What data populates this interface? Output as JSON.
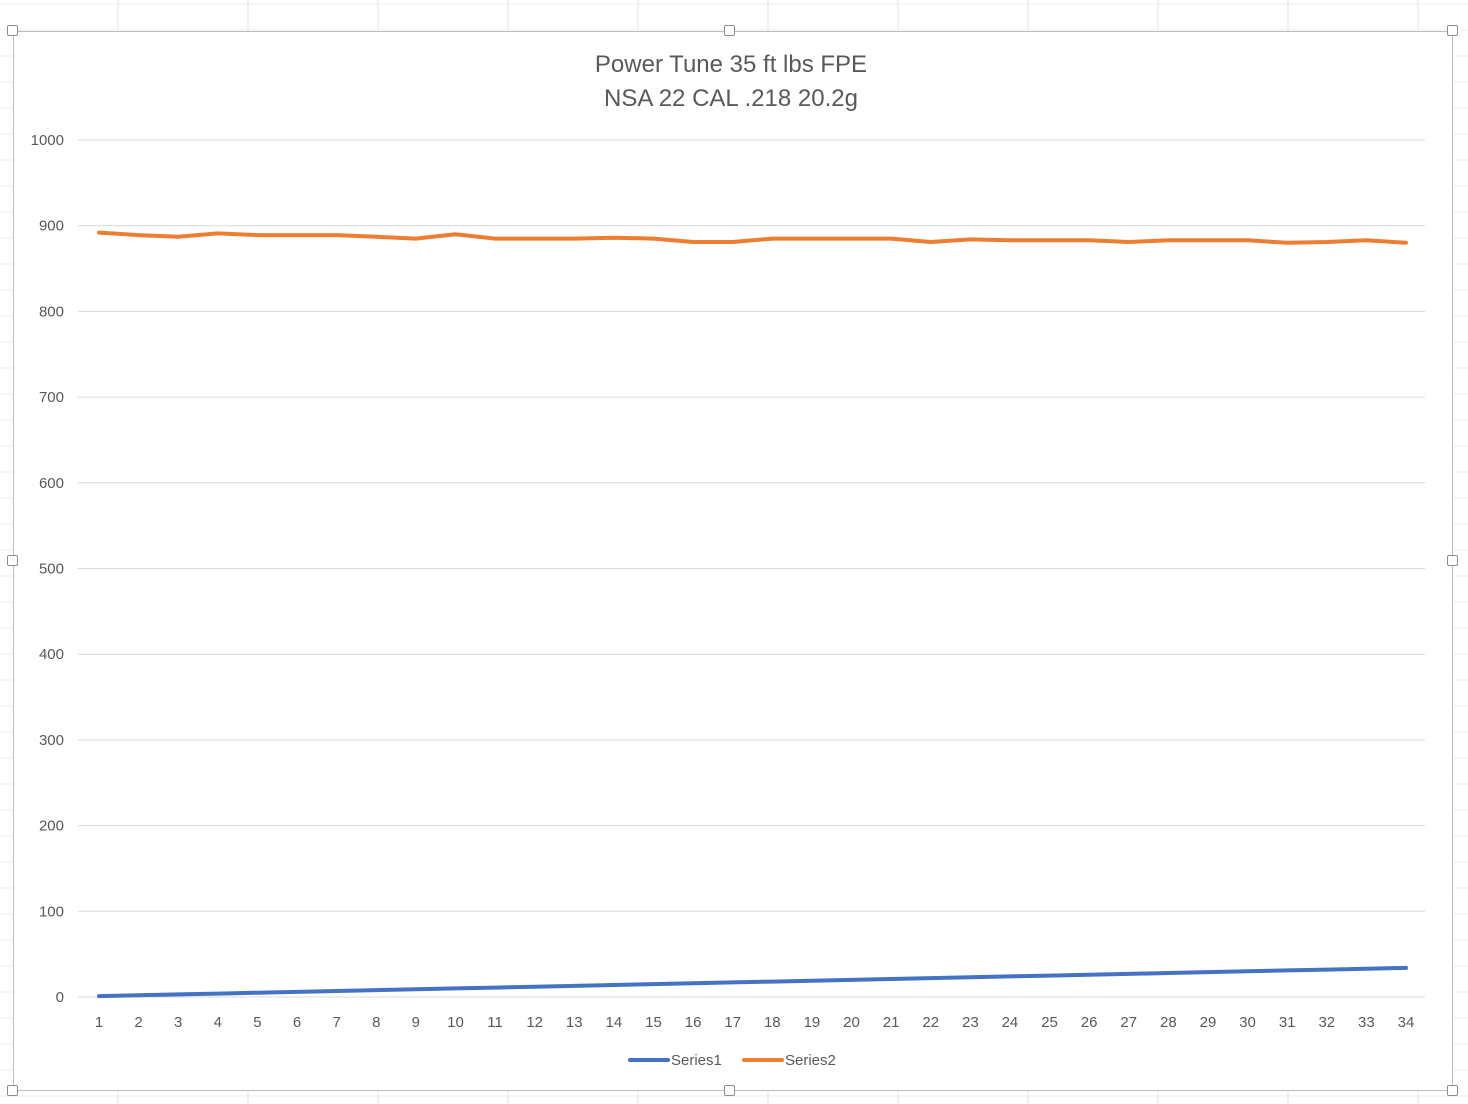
{
  "chart_data": {
    "type": "line",
    "title": [
      "Power Tune 35 ft lbs FPE",
      "NSA 22 CAL .218 20.2g"
    ],
    "xlabel": "",
    "ylabel": "",
    "categories": [
      "1",
      "2",
      "3",
      "4",
      "5",
      "6",
      "7",
      "8",
      "9",
      "10",
      "11",
      "12",
      "13",
      "14",
      "15",
      "16",
      "17",
      "18",
      "19",
      "20",
      "21",
      "22",
      "23",
      "24",
      "25",
      "26",
      "27",
      "28",
      "29",
      "30",
      "31",
      "32",
      "33",
      "34"
    ],
    "ylim": [
      0,
      1000
    ],
    "yticks": [
      "0",
      "100",
      "200",
      "300",
      "400",
      "500",
      "600",
      "700",
      "800",
      "900",
      "1000"
    ],
    "grid": true,
    "legend_position": "bottom",
    "series": [
      {
        "name": "Series1",
        "color": "#4472C4",
        "values": [
          1,
          2,
          3,
          4,
          5,
          6,
          7,
          8,
          9,
          10,
          11,
          12,
          13,
          14,
          15,
          16,
          17,
          18,
          19,
          20,
          21,
          22,
          23,
          24,
          25,
          26,
          27,
          28,
          29,
          30,
          31,
          32,
          33,
          34
        ]
      },
      {
        "name": "Series2",
        "color": "#ED7D31",
        "values": [
          892,
          889,
          887,
          891,
          889,
          889,
          889,
          887,
          885,
          890,
          885,
          885,
          885,
          886,
          885,
          881,
          881,
          885,
          885,
          885,
          885,
          881,
          884,
          883,
          883,
          883,
          881,
          883,
          883,
          883,
          880,
          881,
          883,
          880
        ]
      }
    ]
  }
}
